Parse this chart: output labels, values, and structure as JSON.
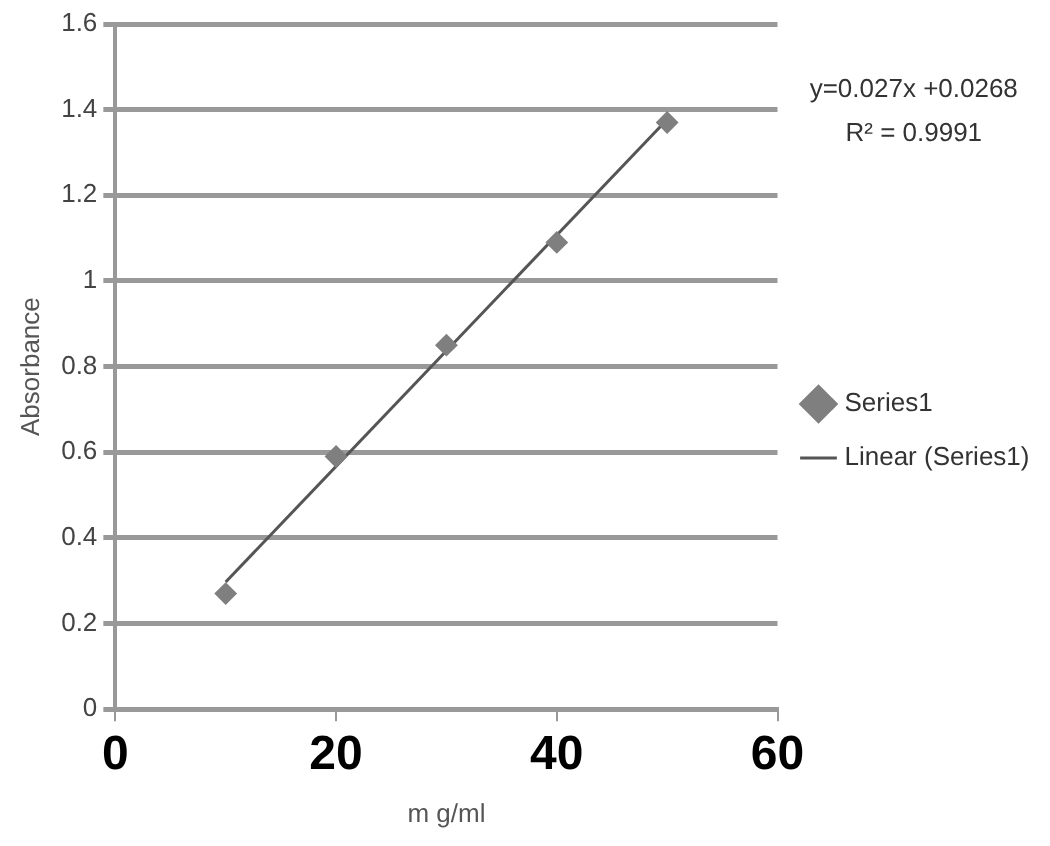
{
  "chart_data": {
    "type": "scatter",
    "xlabel": "m g/ml",
    "ylabel": "Absorbance",
    "x": [
      10,
      20,
      30,
      40,
      50
    ],
    "series": [
      {
        "name": "Series1",
        "color": "#7f7f7f",
        "marker": "diamond",
        "values": [
          0.27,
          0.59,
          0.85,
          1.09,
          1.37
        ]
      },
      {
        "name": "Linear (Series1)",
        "type": "line",
        "color": "#555555",
        "marker": "none",
        "x": [
          10,
          50
        ],
        "values": [
          0.297,
          1.377
        ]
      }
    ],
    "xlim": [
      0,
      60
    ],
    "xticks": [
      0,
      20,
      40,
      60
    ],
    "ylim": [
      0,
      1.6
    ],
    "yticks": [
      0,
      0.2,
      0.4,
      0.6,
      0.8,
      1,
      1.2,
      1.4,
      1.6
    ],
    "grid": "y",
    "legend": "right",
    "annotations": [
      "y=0.027x +0.0268",
      "R² = 0.9991"
    ]
  }
}
